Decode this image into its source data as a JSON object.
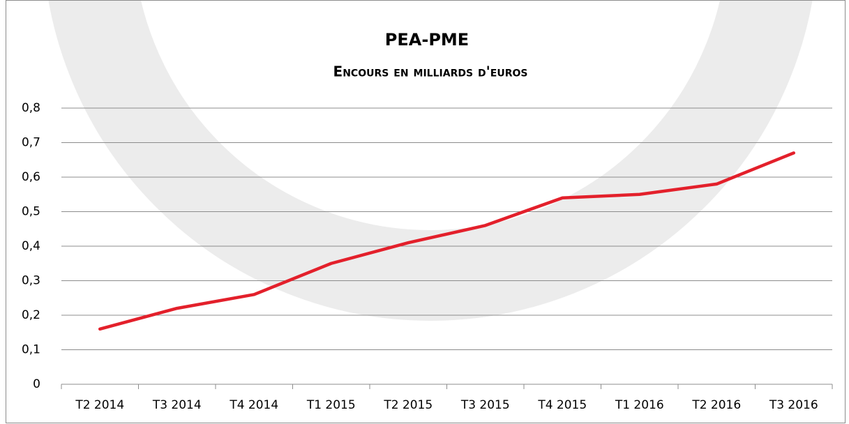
{
  "chart_data": {
    "type": "line",
    "title": "PEA-PME",
    "subtitle": "Encours en milliards d'euros",
    "categories": [
      "T2 2014",
      "T3 2014",
      "T4 2014",
      "T1 2015",
      "T2 2015",
      "T3 2015",
      "T4 2015",
      "T1 2016",
      "T2 2016",
      "T3 2016"
    ],
    "series": [
      {
        "color": "#e3202b",
        "values": [
          0.16,
          0.22,
          0.26,
          0.35,
          0.41,
          0.46,
          0.54,
          0.55,
          0.58,
          0.67
        ]
      }
    ],
    "ylim": [
      0,
      0.8
    ],
    "yticks": [
      0,
      {
        "value": 0.1,
        "label": "0,1"
      },
      {
        "value": 0.2,
        "label": "0,2"
      },
      {
        "value": 0.3,
        "label": "0,3"
      },
      {
        "value": 0.4,
        "label": "0,4"
      },
      {
        "value": 0.5,
        "label": "0,5"
      },
      {
        "value": 0.6,
        "label": "0,6"
      },
      {
        "value": 0.7,
        "label": "0,7"
      },
      {
        "value": 0.8,
        "label": "0,8"
      }
    ],
    "grid": true
  }
}
